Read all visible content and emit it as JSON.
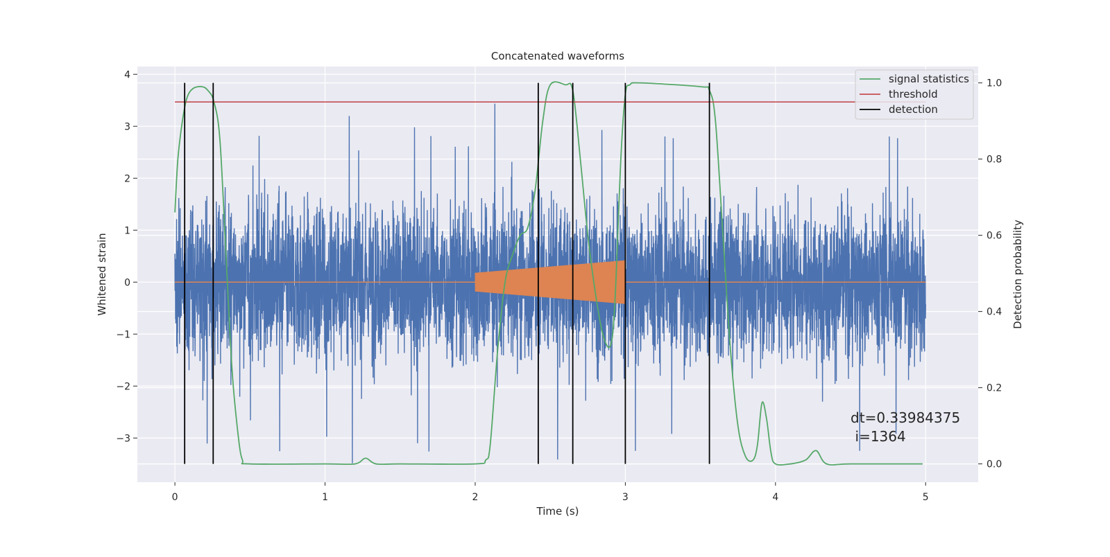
{
  "chart_data": {
    "type": "line",
    "title": "Concatenated waveforms",
    "xlabel": "Time (s)",
    "ylabel_left": "Whitened strain",
    "ylabel_right": "Detection probability",
    "xlim": [
      -0.25,
      5.35
    ],
    "ylim_left": [
      -3.85,
      4.15
    ],
    "ylim_right": [
      -0.048,
      1.043
    ],
    "x_ticks": [
      0,
      1,
      2,
      3,
      4,
      5
    ],
    "y_ticks_left": [
      -3,
      -2,
      -1,
      0,
      1,
      2,
      3,
      4
    ],
    "y_ticks_right": [
      0.0,
      0.2,
      0.4,
      0.6,
      0.8,
      1.0
    ],
    "grid": true,
    "legend_placement": "top-right",
    "colors": {
      "background": "#eaeaf2",
      "grid": "#ffffff",
      "noise": "#4c72b0",
      "injection": "#dd8452",
      "signal_statistics": "#55a868",
      "threshold": "#c44e52",
      "detection": "#000000"
    },
    "noise": {
      "x_range": [
        0.0,
        5.0
      ],
      "typical_range": [
        -1.9,
        2.2
      ],
      "max": 3.78,
      "min": -3.5
    },
    "injection": {
      "x_range": [
        2.0,
        3.0
      ],
      "amplitude_start": 0.18,
      "amplitude_end": 0.42
    },
    "series": [
      {
        "name": "signal statistics",
        "axis": "right",
        "x": [
          0.0,
          0.02,
          0.05,
          0.08,
          0.12,
          0.18,
          0.22,
          0.26,
          0.3,
          0.34,
          0.38,
          0.42,
          0.45,
          0.5,
          1.0,
          1.2,
          1.27,
          1.34,
          1.5,
          2.0,
          2.07,
          2.1,
          2.15,
          2.2,
          2.25,
          2.3,
          2.35,
          2.4,
          2.45,
          2.5,
          2.6,
          2.65,
          2.7,
          2.75,
          2.8,
          2.85,
          2.9,
          2.93,
          2.97,
          3.0,
          3.03,
          3.1,
          3.5,
          3.56,
          3.6,
          3.65,
          3.7,
          3.75,
          3.8,
          3.85,
          3.88,
          3.91,
          3.94,
          3.97,
          4.0,
          4.1,
          4.2,
          4.27,
          4.34,
          4.5,
          4.98
        ],
        "y": [
          0.66,
          0.8,
          0.9,
          0.96,
          0.985,
          0.99,
          0.98,
          0.95,
          0.85,
          0.55,
          0.25,
          0.08,
          0.01,
          0.0,
          0.0,
          0.0,
          0.015,
          0.0,
          0.0,
          0.0,
          0.01,
          0.05,
          0.3,
          0.48,
          0.55,
          0.6,
          0.62,
          0.72,
          0.9,
          0.995,
          0.995,
          0.98,
          0.8,
          0.6,
          0.45,
          0.34,
          0.31,
          0.42,
          0.8,
          0.97,
          0.995,
          1.0,
          0.99,
          0.98,
          0.9,
          0.6,
          0.3,
          0.1,
          0.02,
          0.01,
          0.05,
          0.16,
          0.12,
          0.03,
          0.0,
          0.0,
          0.01,
          0.035,
          0.0,
          0.0,
          0.0
        ]
      },
      {
        "name": "threshold",
        "axis": "right",
        "x": [
          0.0,
          5.0
        ],
        "y": [
          0.95,
          0.95
        ]
      },
      {
        "name": "detection",
        "axis": "right",
        "x": [
          0.065,
          0.255,
          2.42,
          2.65,
          3.0,
          3.56
        ],
        "y_range": [
          0.0,
          1.0
        ]
      }
    ],
    "annotations": [
      {
        "text": "dt=0.33984375",
        "x": 4.5,
        "y": -2.7
      },
      {
        "text": "i=1364",
        "x": 4.53,
        "y": -3.06
      }
    ]
  }
}
